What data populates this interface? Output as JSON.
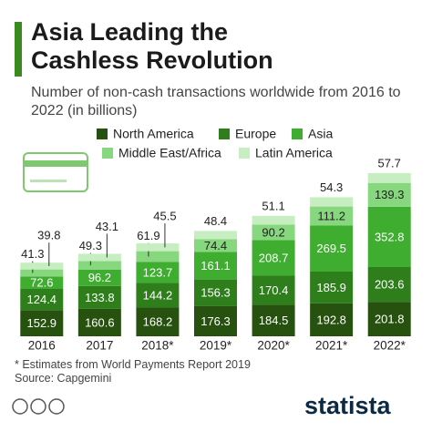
{
  "chart_data": {
    "type": "stacked-bar",
    "title": "Asia Leading the Cashless Revolution",
    "subtitle": "Number of non-cash transactions worldwide from 2016 to 2022 (in billions)",
    "categories": [
      "2016",
      "2017",
      "2018*",
      "2019*",
      "2020*",
      "2021*",
      "2022*"
    ],
    "series": [
      {
        "name": "North America",
        "color": "#27510f",
        "values": [
          152.9,
          160.6,
          168.2,
          176.3,
          184.5,
          192.8,
          201.8
        ]
      },
      {
        "name": "Europe",
        "color": "#2f7e1c",
        "values": [
          124.4,
          133.8,
          144.2,
          156.3,
          170.4,
          185.9,
          203.6
        ]
      },
      {
        "name": "Asia",
        "color": "#3fad30",
        "values": [
          72.6,
          96.2,
          123.7,
          161.1,
          208.7,
          269.5,
          352.8
        ]
      },
      {
        "name": "Middle East/Africa",
        "color": "#86d77d",
        "values": [
          41.3,
          49.3,
          61.9,
          74.4,
          90.2,
          111.2,
          139.3
        ]
      },
      {
        "name": "Latin America",
        "color": "#c6eec0",
        "values": [
          39.8,
          43.1,
          45.5,
          48.4,
          51.1,
          54.3,
          57.7
        ]
      }
    ],
    "footnote": "* Estimates from World Payments Report 2019",
    "source": "Source: Capgemini",
    "brand": "statista"
  }
}
